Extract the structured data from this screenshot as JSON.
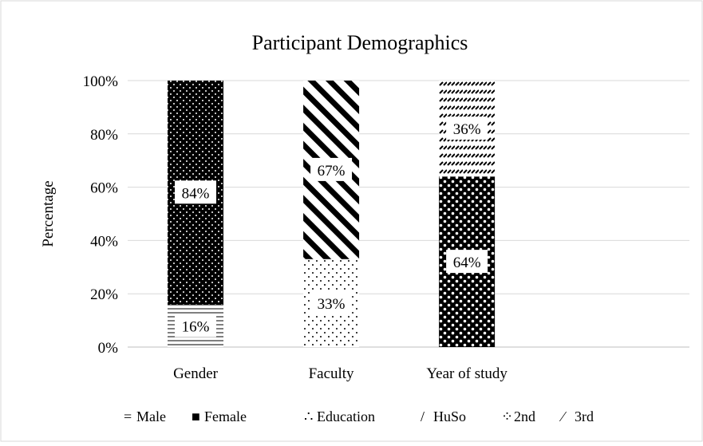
{
  "chart_data": {
    "type": "bar",
    "stacked": true,
    "normalized_percent": true,
    "title": "Participant Demographics",
    "xlabel": "",
    "ylabel": "Percentage",
    "ylim": [
      0,
      100
    ],
    "yticks": [
      "0%",
      "20%",
      "40%",
      "60%",
      "80%",
      "100%"
    ],
    "grid": true,
    "legend_position": "bottom",
    "categories": [
      "Gender",
      "Faculty",
      "Year of study"
    ],
    "series": [
      {
        "name": "Male",
        "category": "Gender",
        "value": 16,
        "label": "16%",
        "pattern": "horizontal-lines"
      },
      {
        "name": "Female",
        "category": "Gender",
        "value": 84,
        "label": "84%",
        "pattern": "dense-dots"
      },
      {
        "name": "Education",
        "category": "Faculty",
        "value": 33,
        "label": "33%",
        "pattern": "sparse-dots"
      },
      {
        "name": "HuSo",
        "category": "Faculty",
        "value": 67,
        "label": "67%",
        "pattern": "wide-diagonal"
      },
      {
        "name": "2nd",
        "category": "Year of study",
        "value": 64,
        "label": "64%",
        "pattern": "checker"
      },
      {
        "name": "3rd",
        "category": "Year of study",
        "value": 36,
        "label": "36%",
        "pattern": "small-dashes"
      }
    ],
    "legend": [
      {
        "name": "Male",
        "glyph": "="
      },
      {
        "name": "Female",
        "glyph": "■"
      },
      {
        "name": "Education",
        "glyph": "∴"
      },
      {
        "name": "HuSo",
        "glyph": "/"
      },
      {
        "name": "2nd",
        "glyph": "⁘"
      },
      {
        "name": "3rd",
        "glyph": "⁄"
      }
    ]
  }
}
